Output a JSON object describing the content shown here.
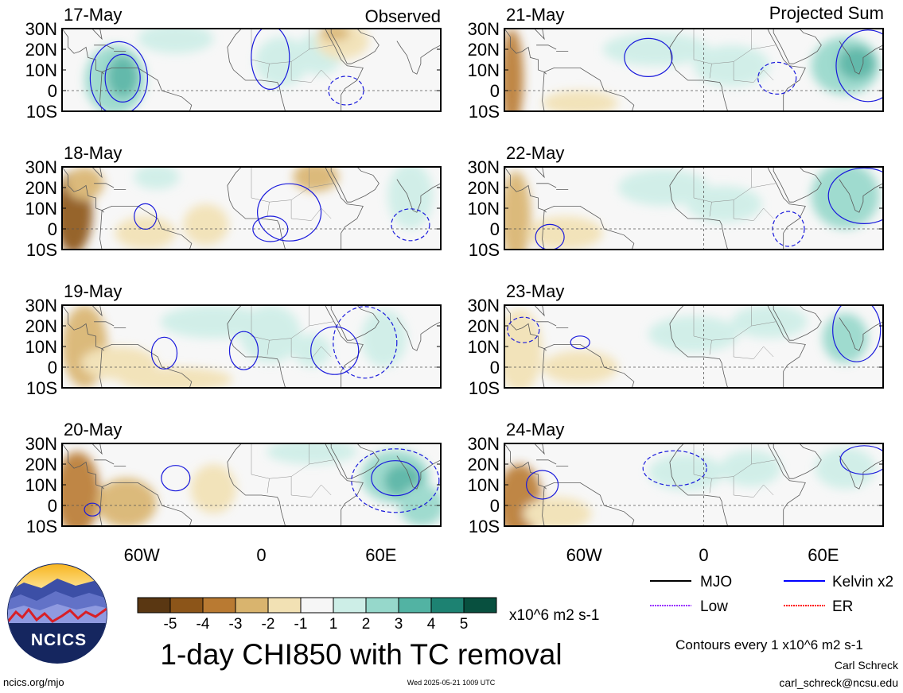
{
  "chart_data": {
    "type": "heatmap",
    "title": "1-day CHI850 with TC removal",
    "column_titles": {
      "left": "Observed",
      "right": "Projected Sum"
    },
    "panels_observed": [
      "17-May",
      "18-May",
      "19-May",
      "20-May"
    ],
    "panels_projected": [
      "21-May",
      "22-May",
      "23-May",
      "24-May"
    ],
    "lat_ticks": [
      "30N",
      "20N",
      "10N",
      "0",
      "10S"
    ],
    "lat_range": [
      -10,
      30
    ],
    "lon_ticks": [
      "60W",
      "0",
      "60E"
    ],
    "lon_range": [
      -100,
      90
    ],
    "colorbar": {
      "tick_labels": [
        "-5",
        "-4",
        "-3",
        "-2",
        "-1",
        "1",
        "2",
        "3",
        "4",
        "5"
      ],
      "units": "x10^6 m2 s-1",
      "colors": [
        "#5a3712",
        "#8c5519",
        "#b97a32",
        "#d9b46e",
        "#f2e1b4",
        "#f6f6f6",
        "#cdeee7",
        "#96d8cb",
        "#52b3a3",
        "#1d8272",
        "#08503f"
      ]
    },
    "legend": [
      {
        "label": "MJO",
        "color": "#000000"
      },
      {
        "label": "Kelvin x2",
        "color": "#0000ff"
      },
      {
        "label": "Low",
        "color": "#9933ff"
      },
      {
        "label": "ER",
        "color": "#ff0000"
      }
    ],
    "contour_note": "Contours every 1 x10^6 m2 s-1"
  },
  "footer": {
    "logo_text": "NCICS",
    "url": "ncics.org/mjo",
    "timestamp": "Wed 2025-05-21 1009 UTC",
    "author": "Carl Schreck",
    "email": "carl_schreck@ncsu.edu"
  }
}
